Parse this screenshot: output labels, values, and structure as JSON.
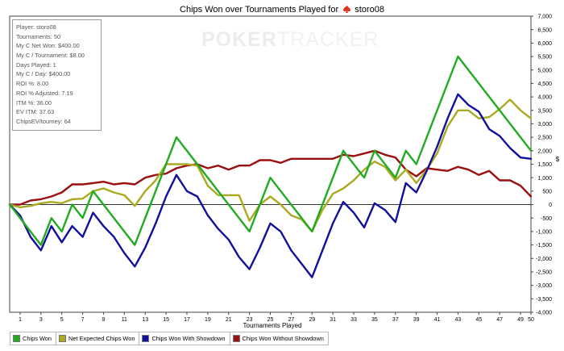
{
  "header": {
    "title_text": "Chips Won over Tournaments Played for",
    "player_name": "storo08"
  },
  "watermark": {
    "part1": "POKER",
    "part2": "TRACKER"
  },
  "stats_box": [
    "Player: storo08",
    "Tournaments: 50",
    "My C Net Won: $400.00",
    "My C / Tournament: $8.00",
    "Days Played: 1",
    "My C / Day: $400.00",
    "ROI %: 8.00",
    "ROI % Adjusted: 7.19",
    "ITM %: 36.00",
    "EV ITM: 37.63",
    "ChipsEV/tourney: 64"
  ],
  "colors": {
    "chips_won": "#22aa22",
    "net_expected": "#aaaa22",
    "with_showdown": "#10109a",
    "without_showdown": "#9a1010",
    "spade_icon": "#e03020"
  },
  "chart_data": {
    "type": "line",
    "xlabel": "Tournaments Played",
    "ylabel": "$",
    "xlim": [
      0,
      50
    ],
    "ylim": [
      -4000,
      7000
    ],
    "xticks": [
      1,
      3,
      5,
      7,
      9,
      11,
      13,
      15,
      17,
      19,
      21,
      23,
      25,
      27,
      29,
      31,
      33,
      35,
      37,
      39,
      41,
      43,
      45,
      47,
      49,
      50
    ],
    "yticks": [
      "7,000",
      "6,500",
      "6,000",
      "5,500",
      "5,000",
      "4,500",
      "4,000",
      "3,500",
      "3,000",
      "2,500",
      "2,000",
      "1,500",
      "1,000",
      "500",
      "0",
      "-500",
      "-1,000",
      "-1,500",
      "-2,000",
      "-2,500",
      "-3,000",
      "-3,500",
      "-4,000"
    ],
    "legend_position": "bottom",
    "grid": false,
    "series": [
      {
        "name": "Chips Won",
        "color_key": "chips_won",
        "x": [
          0,
          3,
          4,
          5,
          6,
          7,
          8,
          12,
          16,
          23,
          25,
          29,
          32,
          34,
          35,
          37,
          38,
          39,
          43,
          50
        ],
        "values": [
          0,
          -1500,
          -500,
          -1000,
          0,
          -500,
          500,
          -1500,
          2500,
          -1000,
          1000,
          -1000,
          2000,
          1000,
          2000,
          1000,
          2000,
          1500,
          5500,
          2000
        ]
      },
      {
        "name": "Net Expected Chips Won",
        "color_key": "net_expected",
        "x": [
          0,
          1,
          2,
          3,
          4,
          5,
          6,
          7,
          8,
          9,
          10,
          11,
          12,
          13,
          14,
          15,
          16,
          17,
          18,
          19,
          20,
          21,
          22,
          23,
          24,
          25,
          26,
          27,
          28,
          29,
          30,
          31,
          32,
          33,
          34,
          35,
          36,
          37,
          38,
          39,
          40,
          41,
          42,
          43,
          44,
          45,
          46,
          47,
          48,
          49,
          50
        ],
        "values": [
          0,
          -100,
          -50,
          50,
          100,
          50,
          200,
          220,
          500,
          600,
          450,
          350,
          -50,
          500,
          900,
          1500,
          1500,
          1500,
          1450,
          700,
          350,
          350,
          350,
          -600,
          0,
          300,
          0,
          -400,
          -550,
          -1000,
          -200,
          400,
          600,
          900,
          1300,
          1600,
          1400,
          900,
          1300,
          800,
          1300,
          1900,
          2900,
          3500,
          3500,
          3200,
          3250,
          3550,
          3900,
          3500,
          3200
        ]
      },
      {
        "name": "Chips Won With Showdown",
        "color_key": "with_showdown",
        "x": [
          0,
          1,
          2,
          3,
          4,
          5,
          6,
          7,
          8,
          9,
          10,
          11,
          12,
          13,
          14,
          15,
          16,
          17,
          18,
          19,
          20,
          21,
          22,
          23,
          24,
          25,
          26,
          27,
          28,
          29,
          30,
          31,
          32,
          33,
          34,
          35,
          36,
          37,
          38,
          39,
          40,
          41,
          42,
          43,
          44,
          45,
          46,
          47,
          48,
          49,
          50
        ],
        "values": [
          0,
          -400,
          -1200,
          -1700,
          -800,
          -1400,
          -800,
          -1200,
          -300,
          -800,
          -1200,
          -1800,
          -2300,
          -1600,
          -700,
          300,
          1100,
          500,
          300,
          -400,
          -900,
          -1300,
          -1950,
          -2400,
          -1600,
          -700,
          -1000,
          -1700,
          -2200,
          -2700,
          -1700,
          -700,
          100,
          -300,
          -850,
          50,
          -200,
          -650,
          800,
          450,
          1250,
          2150,
          3200,
          4100,
          3700,
          3450,
          2800,
          2550,
          2100,
          1750,
          1700
        ]
      },
      {
        "name": "Chips Won Without Showdown",
        "color_key": "without_showdown",
        "x": [
          0,
          1,
          2,
          3,
          4,
          5,
          6,
          7,
          8,
          9,
          10,
          11,
          12,
          13,
          14,
          15,
          16,
          17,
          18,
          19,
          20,
          21,
          22,
          23,
          24,
          25,
          26,
          27,
          28,
          29,
          30,
          31,
          32,
          33,
          34,
          35,
          36,
          37,
          38,
          39,
          40,
          41,
          42,
          43,
          44,
          45,
          46,
          47,
          48,
          49,
          50
        ],
        "values": [
          0,
          0,
          150,
          200,
          300,
          450,
          750,
          750,
          800,
          850,
          750,
          800,
          750,
          1000,
          1100,
          1150,
          1350,
          1450,
          1500,
          1350,
          1450,
          1300,
          1450,
          1450,
          1650,
          1650,
          1550,
          1700,
          1700,
          1700,
          1700,
          1700,
          1850,
          1800,
          1900,
          2000,
          1850,
          1750,
          1300,
          1050,
          1350,
          1300,
          1250,
          1400,
          1300,
          1100,
          1250,
          900,
          900,
          700,
          300
        ]
      }
    ]
  }
}
